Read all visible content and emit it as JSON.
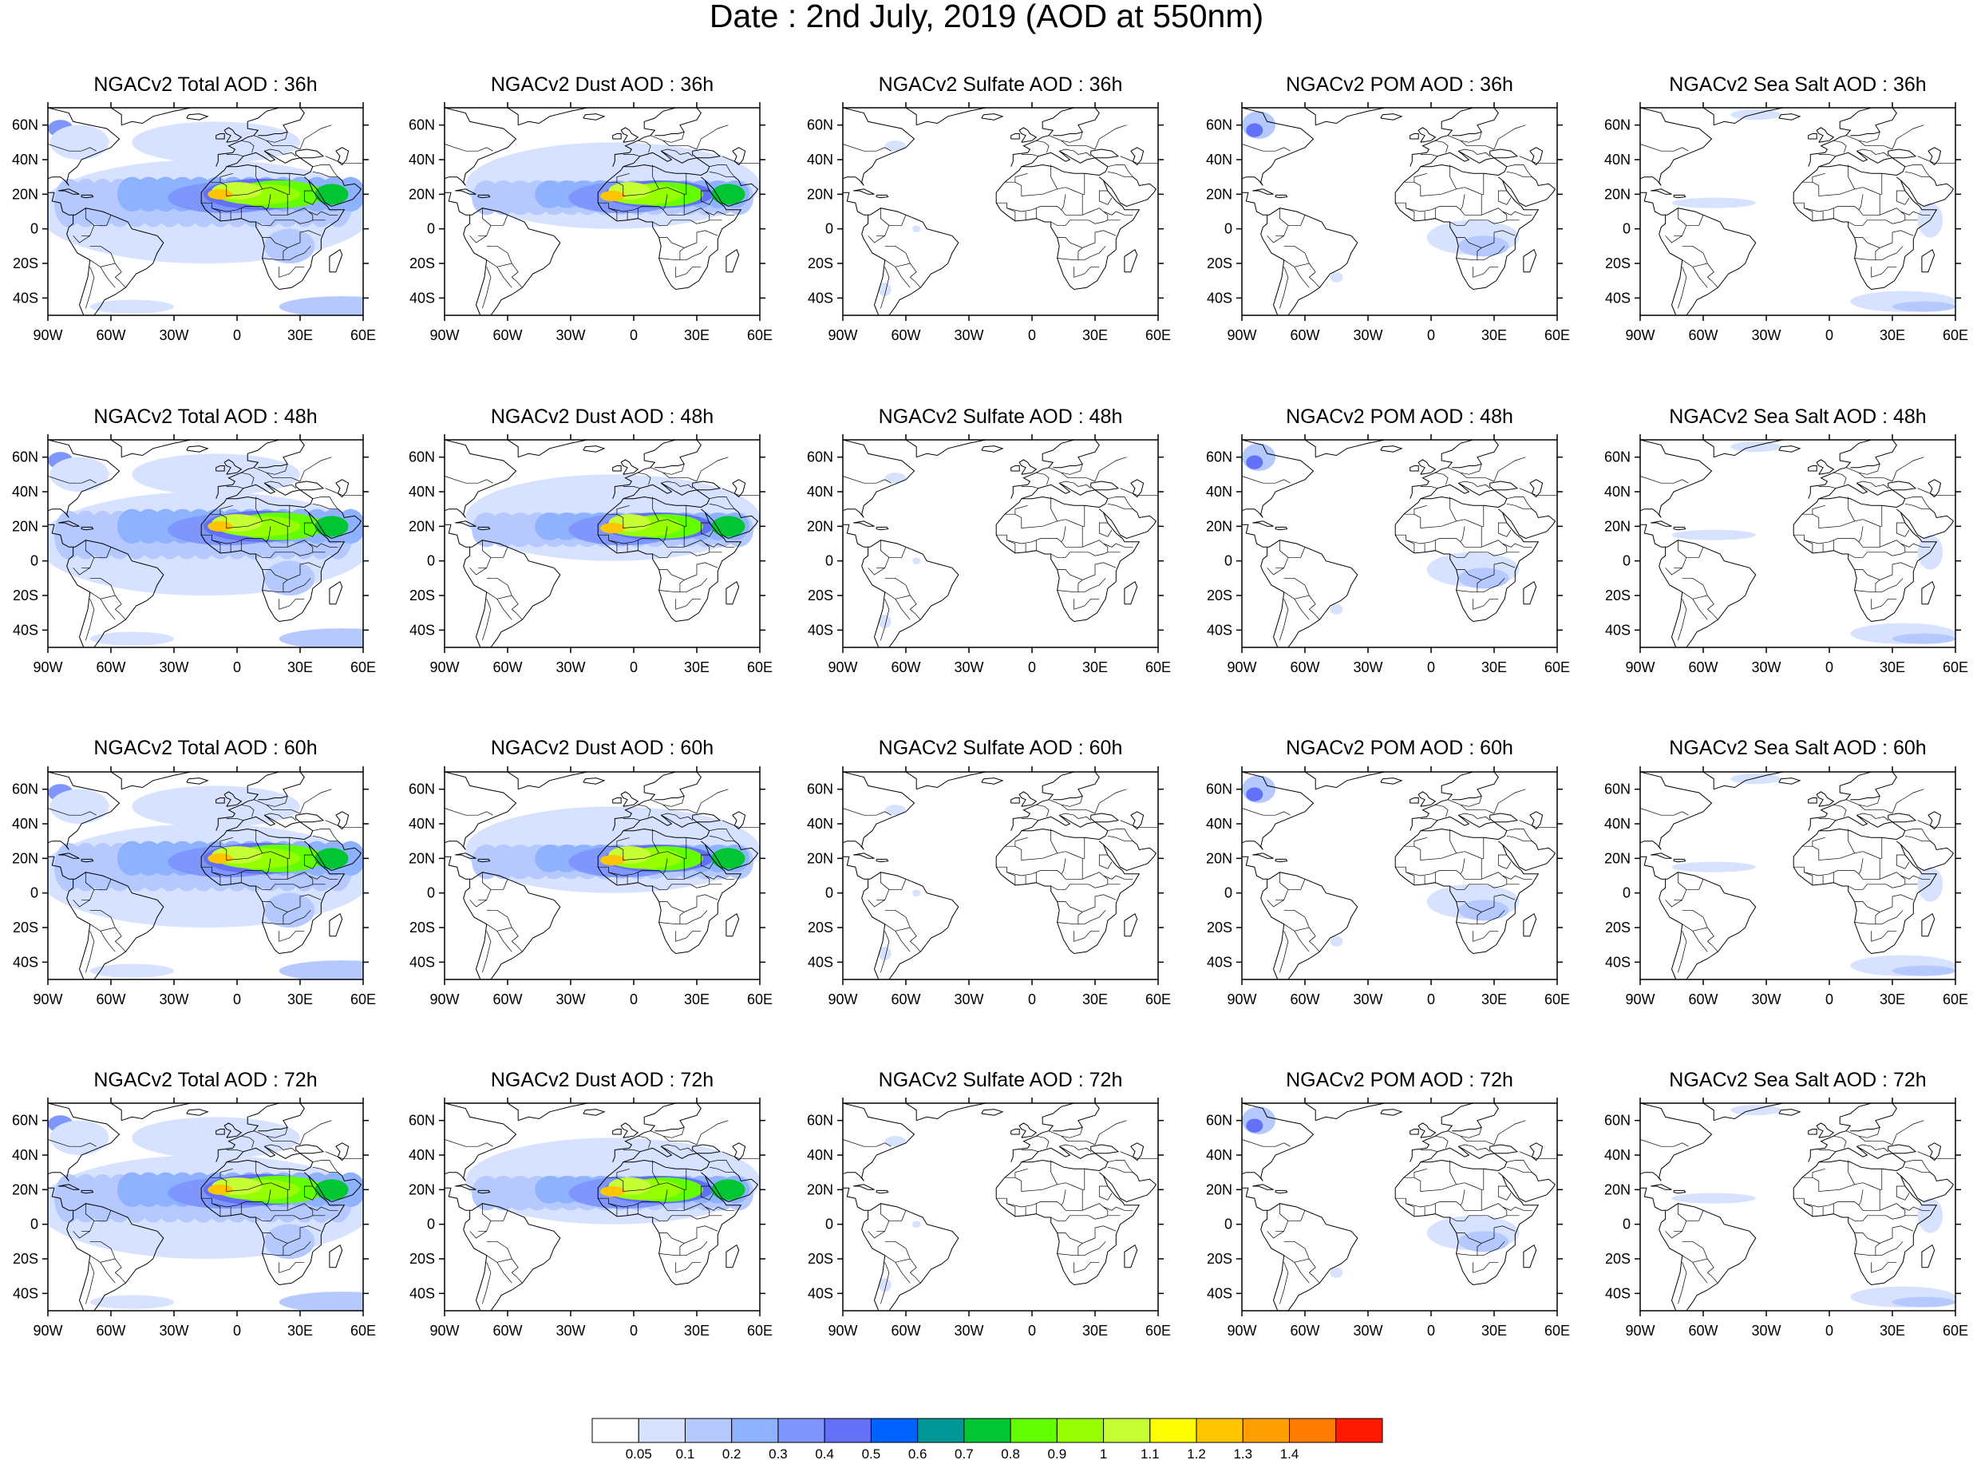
{
  "figure": {
    "title": "Date : 2nd July, 2019 (AOD at 550nm)",
    "lon_ticks": [
      "90W",
      "60W",
      "30W",
      "0",
      "30E",
      "60E"
    ],
    "lat_ticks": [
      "60N",
      "40N",
      "20N",
      "0",
      "20S",
      "40S"
    ],
    "lon_range": [
      -90,
      60
    ],
    "lat_range": [
      -50,
      70
    ],
    "panels": [
      [
        "NGACv2 Total AOD : 36h",
        "NGACv2 Dust AOD : 36h",
        "NGACv2 Sulfate AOD : 36h",
        "NGACv2 POM AOD : 36h",
        "NGACv2 Sea Salt AOD : 36h"
      ],
      [
        "NGACv2 Total AOD : 48h",
        "NGACv2 Dust AOD : 48h",
        "NGACv2 Sulfate AOD : 48h",
        "NGACv2 POM AOD : 48h",
        "NGACv2 Sea Salt AOD : 48h"
      ],
      [
        "NGACv2 Total AOD : 60h",
        "NGACv2 Dust AOD : 60h",
        "NGACv2 Sulfate AOD : 60h",
        "NGACv2 POM AOD : 60h",
        "NGACv2 Sea Salt AOD : 60h"
      ],
      [
        "NGACv2 Total AOD : 72h",
        "NGACv2 Dust AOD : 72h",
        "NGACv2 Sulfate AOD : 72h",
        "NGACv2 POM AOD : 72h",
        "NGACv2 Sea Salt  AOD : 72h"
      ]
    ],
    "species": [
      "total",
      "dust",
      "sulfate",
      "pom",
      "seasalt"
    ],
    "lead_hours": [
      36,
      48,
      60,
      72
    ]
  },
  "colorbar": {
    "labels": [
      "0.05",
      "0.1",
      "0.2",
      "0.3",
      "0.4",
      "0.5",
      "0.6",
      "0.7",
      "0.8",
      "0.9",
      "1",
      "1.1",
      "1.2",
      "1.3",
      "1.4"
    ],
    "colors": [
      "#ffffff",
      "#d6e2ff",
      "#b5c9ff",
      "#8eb2ff",
      "#7f96ff",
      "#6370f8",
      "#0063ff",
      "#009696",
      "#00c633",
      "#63ff00",
      "#96ff00",
      "#c6ff33",
      "#ffff00",
      "#ffc600",
      "#ffa000",
      "#ff7c00",
      "#ff1900"
    ]
  }
}
